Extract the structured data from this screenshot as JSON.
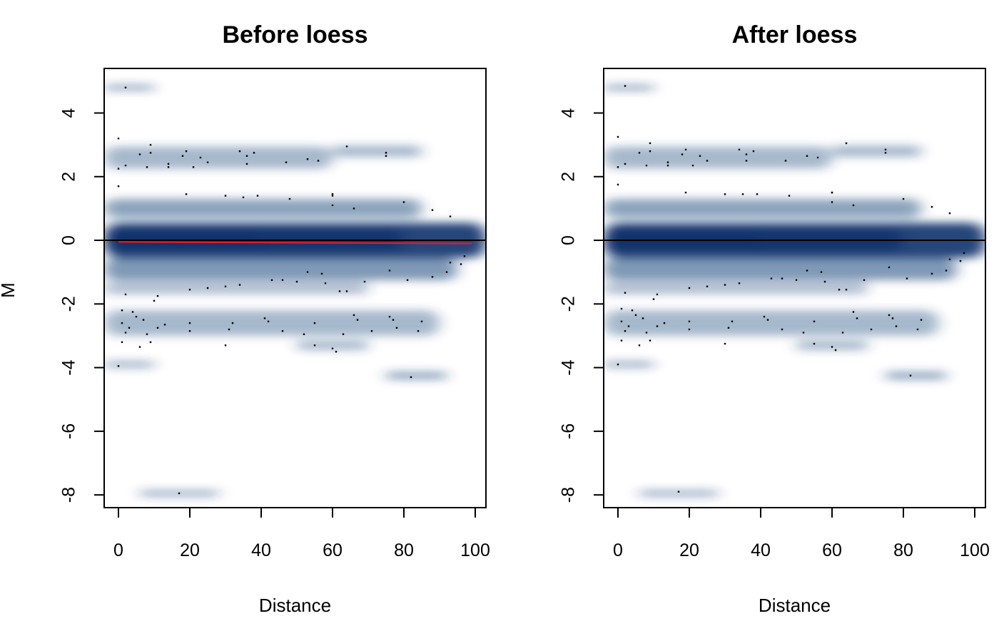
{
  "chart_data": [
    {
      "type": "scatter",
      "style": "smoothed density scatter",
      "title": "Before loess",
      "xlabel": "Distance",
      "ylabel": "M",
      "xlim": [
        -4,
        103
      ],
      "ylim": [
        -8.4,
        5.4
      ],
      "xticks": [
        0,
        20,
        40,
        60,
        80,
        100
      ],
      "yticks": [
        4,
        2,
        0,
        -2,
        -4,
        -6,
        -8
      ],
      "hline": 0,
      "fit_line": {
        "color": "#e8172b",
        "x": [
          0,
          99
        ],
        "y": [
          -0.05,
          -0.1
        ]
      },
      "density_color": "#08306b",
      "density_clusters": [
        {
          "x0": -4,
          "x1": 103,
          "y": 0,
          "ry": 0.55,
          "opacity": 0.9
        },
        {
          "x0": -4,
          "x1": 80,
          "y": 0,
          "ry": 0.35,
          "opacity": 0.7
        },
        {
          "x0": -4,
          "x1": 40,
          "y": 0,
          "ry": 0.25,
          "opacity": 0.6
        },
        {
          "x0": -4,
          "x1": 95,
          "y": -0.9,
          "ry": 0.35,
          "opacity": 0.5
        },
        {
          "x0": -4,
          "x1": 85,
          "y": 1.0,
          "ry": 0.3,
          "opacity": 0.45
        },
        {
          "x0": -4,
          "x1": 60,
          "y": 2.6,
          "ry": 0.35,
          "opacity": 0.35
        },
        {
          "x0": 60,
          "x1": 85,
          "y": 2.8,
          "ry": 0.18,
          "opacity": 0.35
        },
        {
          "x0": -4,
          "x1": 90,
          "y": -2.6,
          "ry": 0.4,
          "opacity": 0.35
        },
        {
          "x0": -4,
          "x1": 70,
          "y": -1.5,
          "ry": 0.2,
          "opacity": 0.3
        },
        {
          "x0": 50,
          "x1": 70,
          "y": -3.3,
          "ry": 0.15,
          "opacity": 0.35
        },
        {
          "x0": -4,
          "x1": 10,
          "y": 4.8,
          "ry": 0.1,
          "opacity": 0.4
        },
        {
          "x0": -4,
          "x1": 10,
          "y": -3.9,
          "ry": 0.1,
          "opacity": 0.4
        },
        {
          "x0": 75,
          "x1": 92,
          "y": -4.25,
          "ry": 0.12,
          "opacity": 0.45
        },
        {
          "x0": 6,
          "x1": 28,
          "y": -7.95,
          "ry": 0.1,
          "opacity": 0.4
        }
      ],
      "points": [
        {
          "x": 2,
          "y": 4.8
        },
        {
          "x": 0,
          "y": 3.2
        },
        {
          "x": 9,
          "y": 3.0
        },
        {
          "x": 19,
          "y": 2.8
        },
        {
          "x": 34,
          "y": 2.8
        },
        {
          "x": 38,
          "y": 2.75
        },
        {
          "x": 64,
          "y": 2.95
        },
        {
          "x": 75,
          "y": 2.75
        },
        {
          "x": 75,
          "y": 2.65
        },
        {
          "x": 6,
          "y": 2.7
        },
        {
          "x": 9,
          "y": 2.75
        },
        {
          "x": 18,
          "y": 2.65
        },
        {
          "x": 23,
          "y": 2.6
        },
        {
          "x": 36,
          "y": 2.65
        },
        {
          "x": 53,
          "y": 2.55
        },
        {
          "x": 56,
          "y": 2.5
        },
        {
          "x": 2,
          "y": 2.35
        },
        {
          "x": 14,
          "y": 2.4
        },
        {
          "x": 14,
          "y": 2.3
        },
        {
          "x": 21,
          "y": 2.3
        },
        {
          "x": 25,
          "y": 2.45
        },
        {
          "x": 36,
          "y": 2.4
        },
        {
          "x": 47,
          "y": 2.45
        },
        {
          "x": 0,
          "y": 2.25
        },
        {
          "x": 8,
          "y": 2.3
        },
        {
          "x": 0,
          "y": 1.7
        },
        {
          "x": 19,
          "y": 1.45
        },
        {
          "x": 30,
          "y": 1.4
        },
        {
          "x": 35,
          "y": 1.35
        },
        {
          "x": 39,
          "y": 1.4
        },
        {
          "x": 48,
          "y": 1.3
        },
        {
          "x": 60,
          "y": 1.45
        },
        {
          "x": 60,
          "y": 1.4
        },
        {
          "x": 60,
          "y": 1.1
        },
        {
          "x": 66,
          "y": 1.0
        },
        {
          "x": 80,
          "y": 1.2
        },
        {
          "x": 88,
          "y": 0.95
        },
        {
          "x": 93,
          "y": 0.75
        },
        {
          "x": 97,
          "y": -0.5
        },
        {
          "x": 96,
          "y": -0.75
        },
        {
          "x": 93,
          "y": -0.7
        },
        {
          "x": 92,
          "y": -1.0
        },
        {
          "x": 88,
          "y": -1.15
        },
        {
          "x": 81,
          "y": -1.25
        },
        {
          "x": 76,
          "y": -0.95
        },
        {
          "x": 69,
          "y": -1.3
        },
        {
          "x": 57,
          "y": -1.05
        },
        {
          "x": 53,
          "y": -1.0
        },
        {
          "x": 46,
          "y": -1.25
        },
        {
          "x": 43,
          "y": -1.25
        },
        {
          "x": 50,
          "y": -1.3
        },
        {
          "x": 58,
          "y": -1.35
        },
        {
          "x": 62,
          "y": -1.6
        },
        {
          "x": 64,
          "y": -1.6
        },
        {
          "x": 34,
          "y": -1.4
        },
        {
          "x": 30,
          "y": -1.45
        },
        {
          "x": 25,
          "y": -1.5
        },
        {
          "x": 20,
          "y": -1.55
        },
        {
          "x": 2,
          "y": -1.7
        },
        {
          "x": 11,
          "y": -1.75
        },
        {
          "x": 10,
          "y": -1.9
        },
        {
          "x": 1,
          "y": -2.2
        },
        {
          "x": 4,
          "y": -2.25
        },
        {
          "x": 5,
          "y": -2.4
        },
        {
          "x": 7,
          "y": -2.5
        },
        {
          "x": 3,
          "y": -2.75
        },
        {
          "x": 1,
          "y": -2.6
        },
        {
          "x": 2,
          "y": -2.9
        },
        {
          "x": 11,
          "y": -2.75
        },
        {
          "x": 13,
          "y": -2.65
        },
        {
          "x": 8,
          "y": -2.95
        },
        {
          "x": 20,
          "y": -2.6
        },
        {
          "x": 20,
          "y": -2.85
        },
        {
          "x": 32,
          "y": -2.6
        },
        {
          "x": 31,
          "y": -2.8
        },
        {
          "x": 41,
          "y": -2.45
        },
        {
          "x": 42,
          "y": -2.55
        },
        {
          "x": 46,
          "y": -2.85
        },
        {
          "x": 52,
          "y": -2.95
        },
        {
          "x": 55,
          "y": -2.6
        },
        {
          "x": 63,
          "y": -2.95
        },
        {
          "x": 66,
          "y": -2.35
        },
        {
          "x": 67,
          "y": -2.5
        },
        {
          "x": 71,
          "y": -2.85
        },
        {
          "x": 76,
          "y": -2.4
        },
        {
          "x": 77,
          "y": -2.5
        },
        {
          "x": 78,
          "y": -2.75
        },
        {
          "x": 85,
          "y": -2.55
        },
        {
          "x": 84,
          "y": -2.85
        },
        {
          "x": 6,
          "y": -3.35
        },
        {
          "x": 1,
          "y": -3.2
        },
        {
          "x": 9,
          "y": -3.2
        },
        {
          "x": 30,
          "y": -3.3
        },
        {
          "x": 55,
          "y": -3.3
        },
        {
          "x": 60,
          "y": -3.4
        },
        {
          "x": 61,
          "y": -3.5
        },
        {
          "x": 0,
          "y": -3.95
        },
        {
          "x": 82,
          "y": -4.3
        },
        {
          "x": 17,
          "y": -7.95
        }
      ]
    },
    {
      "type": "scatter",
      "style": "smoothed density scatter",
      "title": "After loess",
      "xlabel": "Distance",
      "ylabel": "",
      "xlim": [
        -4,
        103
      ],
      "ylim": [
        -8.4,
        5.4
      ],
      "xticks": [
        0,
        20,
        40,
        60,
        80,
        100
      ],
      "yticks": [
        4,
        2,
        0,
        -2,
        -4,
        -6,
        -8
      ],
      "hline": 0,
      "density_color": "#08306b",
      "density_clusters": [
        {
          "x0": -4,
          "x1": 103,
          "y": 0,
          "ry": 0.55,
          "opacity": 0.9
        },
        {
          "x0": -4,
          "x1": 80,
          "y": 0,
          "ry": 0.35,
          "opacity": 0.7
        },
        {
          "x0": -4,
          "x1": 40,
          "y": 0,
          "ry": 0.25,
          "opacity": 0.6
        },
        {
          "x0": -4,
          "x1": 95,
          "y": -0.9,
          "ry": 0.35,
          "opacity": 0.5
        },
        {
          "x0": -4,
          "x1": 85,
          "y": 1.0,
          "ry": 0.3,
          "opacity": 0.45
        },
        {
          "x0": -4,
          "x1": 60,
          "y": 2.6,
          "ry": 0.35,
          "opacity": 0.35
        },
        {
          "x0": 60,
          "x1": 85,
          "y": 2.8,
          "ry": 0.18,
          "opacity": 0.35
        },
        {
          "x0": -4,
          "x1": 90,
          "y": -2.6,
          "ry": 0.4,
          "opacity": 0.35
        },
        {
          "x0": -4,
          "x1": 70,
          "y": -1.5,
          "ry": 0.2,
          "opacity": 0.3
        },
        {
          "x0": 50,
          "x1": 70,
          "y": -3.3,
          "ry": 0.15,
          "opacity": 0.35
        },
        {
          "x0": -4,
          "x1": 10,
          "y": 4.8,
          "ry": 0.1,
          "opacity": 0.4
        },
        {
          "x0": -4,
          "x1": 10,
          "y": -3.9,
          "ry": 0.1,
          "opacity": 0.4
        },
        {
          "x0": 75,
          "x1": 92,
          "y": -4.25,
          "ry": 0.12,
          "opacity": 0.45
        },
        {
          "x0": 6,
          "x1": 28,
          "y": -7.95,
          "ry": 0.1,
          "opacity": 0.4
        }
      ],
      "points": [
        {
          "x": 2,
          "y": 4.85
        },
        {
          "x": 0,
          "y": 3.25
        },
        {
          "x": 9,
          "y": 3.05
        },
        {
          "x": 19,
          "y": 2.85
        },
        {
          "x": 34,
          "y": 2.85
        },
        {
          "x": 38,
          "y": 2.8
        },
        {
          "x": 64,
          "y": 3.05
        },
        {
          "x": 75,
          "y": 2.85
        },
        {
          "x": 75,
          "y": 2.75
        },
        {
          "x": 6,
          "y": 2.75
        },
        {
          "x": 9,
          "y": 2.8
        },
        {
          "x": 18,
          "y": 2.7
        },
        {
          "x": 23,
          "y": 2.65
        },
        {
          "x": 36,
          "y": 2.7
        },
        {
          "x": 53,
          "y": 2.65
        },
        {
          "x": 56,
          "y": 2.6
        },
        {
          "x": 2,
          "y": 2.4
        },
        {
          "x": 14,
          "y": 2.45
        },
        {
          "x": 14,
          "y": 2.35
        },
        {
          "x": 21,
          "y": 2.35
        },
        {
          "x": 25,
          "y": 2.5
        },
        {
          "x": 36,
          "y": 2.5
        },
        {
          "x": 47,
          "y": 2.5
        },
        {
          "x": 0,
          "y": 2.3
        },
        {
          "x": 8,
          "y": 2.35
        },
        {
          "x": 0,
          "y": 1.75
        },
        {
          "x": 19,
          "y": 1.5
        },
        {
          "x": 30,
          "y": 1.45
        },
        {
          "x": 35,
          "y": 1.45
        },
        {
          "x": 39,
          "y": 1.45
        },
        {
          "x": 48,
          "y": 1.4
        },
        {
          "x": 60,
          "y": 1.5
        },
        {
          "x": 60,
          "y": 1.5
        },
        {
          "x": 60,
          "y": 1.2
        },
        {
          "x": 66,
          "y": 1.1
        },
        {
          "x": 80,
          "y": 1.3
        },
        {
          "x": 88,
          "y": 1.05
        },
        {
          "x": 93,
          "y": 0.85
        },
        {
          "x": 97,
          "y": -0.4
        },
        {
          "x": 96,
          "y": -0.65
        },
        {
          "x": 93,
          "y": -0.6
        },
        {
          "x": 92,
          "y": -0.95
        },
        {
          "x": 88,
          "y": -1.05
        },
        {
          "x": 81,
          "y": -1.2
        },
        {
          "x": 76,
          "y": -0.85
        },
        {
          "x": 69,
          "y": -1.25
        },
        {
          "x": 57,
          "y": -1.0
        },
        {
          "x": 53,
          "y": -0.95
        },
        {
          "x": 46,
          "y": -1.2
        },
        {
          "x": 43,
          "y": -1.2
        },
        {
          "x": 50,
          "y": -1.25
        },
        {
          "x": 58,
          "y": -1.3
        },
        {
          "x": 62,
          "y": -1.55
        },
        {
          "x": 64,
          "y": -1.55
        },
        {
          "x": 34,
          "y": -1.35
        },
        {
          "x": 30,
          "y": -1.4
        },
        {
          "x": 25,
          "y": -1.45
        },
        {
          "x": 20,
          "y": -1.5
        },
        {
          "x": 2,
          "y": -1.65
        },
        {
          "x": 11,
          "y": -1.7
        },
        {
          "x": 10,
          "y": -1.85
        },
        {
          "x": 1,
          "y": -2.15
        },
        {
          "x": 4,
          "y": -2.2
        },
        {
          "x": 5,
          "y": -2.35
        },
        {
          "x": 7,
          "y": -2.45
        },
        {
          "x": 3,
          "y": -2.7
        },
        {
          "x": 1,
          "y": -2.55
        },
        {
          "x": 2,
          "y": -2.85
        },
        {
          "x": 11,
          "y": -2.7
        },
        {
          "x": 13,
          "y": -2.6
        },
        {
          "x": 8,
          "y": -2.9
        },
        {
          "x": 20,
          "y": -2.55
        },
        {
          "x": 20,
          "y": -2.8
        },
        {
          "x": 32,
          "y": -2.55
        },
        {
          "x": 31,
          "y": -2.75
        },
        {
          "x": 41,
          "y": -2.4
        },
        {
          "x": 42,
          "y": -2.5
        },
        {
          "x": 46,
          "y": -2.8
        },
        {
          "x": 52,
          "y": -2.9
        },
        {
          "x": 55,
          "y": -2.55
        },
        {
          "x": 63,
          "y": -2.9
        },
        {
          "x": 66,
          "y": -2.25
        },
        {
          "x": 67,
          "y": -2.45
        },
        {
          "x": 71,
          "y": -2.8
        },
        {
          "x": 76,
          "y": -2.35
        },
        {
          "x": 77,
          "y": -2.45
        },
        {
          "x": 78,
          "y": -2.7
        },
        {
          "x": 85,
          "y": -2.5
        },
        {
          "x": 84,
          "y": -2.8
        },
        {
          "x": 6,
          "y": -3.3
        },
        {
          "x": 1,
          "y": -3.15
        },
        {
          "x": 9,
          "y": -3.15
        },
        {
          "x": 30,
          "y": -3.25
        },
        {
          "x": 55,
          "y": -3.25
        },
        {
          "x": 60,
          "y": -3.35
        },
        {
          "x": 61,
          "y": -3.45
        },
        {
          "x": 0,
          "y": -3.9
        },
        {
          "x": 82,
          "y": -4.25
        },
        {
          "x": 17,
          "y": -7.9
        }
      ]
    }
  ]
}
